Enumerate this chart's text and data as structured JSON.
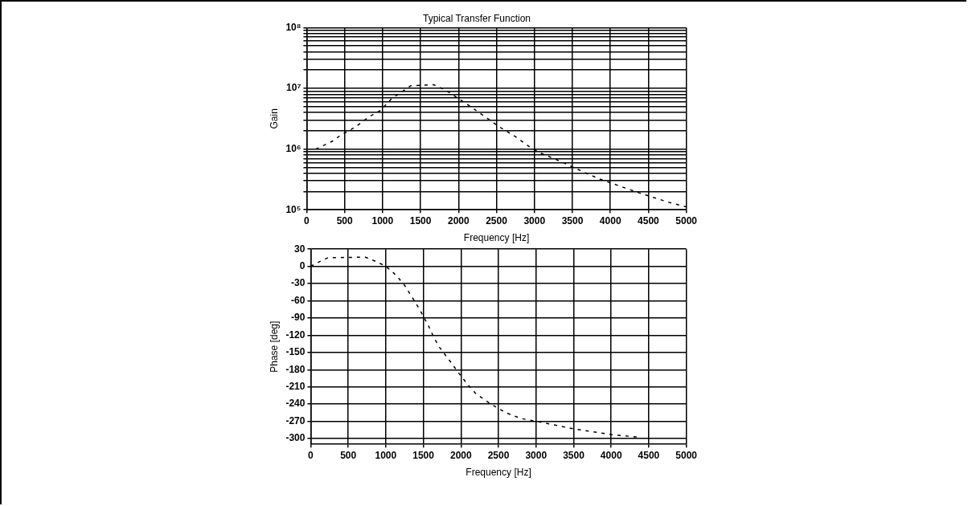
{
  "chart_data": [
    {
      "type": "line",
      "title": "Typical Transfer Function",
      "xlabel": "Frequency [Hz]",
      "ylabel": "Gain",
      "log": "y",
      "grid": true,
      "legend": false,
      "marker": "none",
      "line_style": "dashed",
      "xlim": [
        0,
        5000
      ],
      "xticks": [
        0,
        500,
        1000,
        1500,
        2000,
        2500,
        3000,
        3500,
        4000,
        4500,
        5000
      ],
      "ylim": [
        100000,
        100000000
      ],
      "yticks": [
        {
          "value": 100000,
          "label": "10⁵"
        },
        {
          "value": 200000,
          "label": null
        },
        {
          "value": 300000,
          "label": null
        },
        {
          "value": 400000,
          "label": null
        },
        {
          "value": 500000,
          "label": null
        },
        {
          "value": 600000,
          "label": null
        },
        {
          "value": 700000,
          "label": null
        },
        {
          "value": 800000,
          "label": null
        },
        {
          "value": 900000,
          "label": null
        },
        {
          "value": 1000000,
          "label": "10⁶"
        },
        {
          "value": 2000000,
          "label": null
        },
        {
          "value": 3000000,
          "label": null
        },
        {
          "value": 4000000,
          "label": null
        },
        {
          "value": 5000000,
          "label": null
        },
        {
          "value": 6000000,
          "label": null
        },
        {
          "value": 7000000,
          "label": null
        },
        {
          "value": 8000000,
          "label": null
        },
        {
          "value": 9000000,
          "label": null
        },
        {
          "value": 10000000,
          "label": "10⁷"
        },
        {
          "value": 20000000,
          "label": null
        },
        {
          "value": 30000000,
          "label": null
        },
        {
          "value": 40000000,
          "label": null
        },
        {
          "value": 50000000,
          "label": null
        },
        {
          "value": 60000000,
          "label": null
        },
        {
          "value": 70000000,
          "label": null
        },
        {
          "value": 80000000,
          "label": null
        },
        {
          "value": 90000000,
          "label": null
        },
        {
          "value": 100000000,
          "label": "10⁸"
        }
      ],
      "x": [
        120,
        340,
        450,
        640,
        820,
        970,
        1120,
        1370,
        1670,
        1820,
        2000,
        2190,
        2380,
        2520,
        2750,
        2930,
        3080,
        3340,
        3560,
        3860,
        4190,
        4380,
        4750,
        5000
      ],
      "series": [
        {
          "color": "#000000",
          "values": [
            1000000,
            1350000,
            1700000,
            2300000,
            3400000,
            4300000,
            6800000,
            11000000,
            11500000,
            9500000,
            6800000,
            4700000,
            3200000,
            2400000,
            1600000,
            1100000,
            860000,
            630000,
            470000,
            320000,
            230000,
            190000,
            135000,
            112000
          ]
        }
      ]
    },
    {
      "type": "line",
      "xlabel": "Frequency [Hz]",
      "ylabel": "Phase [deg]",
      "grid": true,
      "legend": false,
      "marker": "none",
      "line_style": "dashed",
      "xlim": [
        0,
        5000
      ],
      "xticks": [
        0,
        500,
        1000,
        1500,
        2000,
        2500,
        3000,
        3500,
        4000,
        4500,
        5000
      ],
      "ylim": [
        -310,
        30
      ],
      "yticks": [
        30,
        0,
        -30,
        -60,
        -90,
        -120,
        -150,
        -180,
        -210,
        -240,
        -270,
        -300
      ],
      "x": [
        0,
        100,
        230,
        730,
        880,
        1000,
        1085,
        1160,
        1250,
        1400,
        1475,
        1570,
        1640,
        1715,
        1865,
        1960,
        2090,
        2200,
        2400,
        2600,
        2800,
        3000,
        3200,
        3500,
        4000,
        4400
      ],
      "series": [
        {
          "color": "#000000",
          "values": [
            0,
            7,
            15,
            16,
            8,
            0,
            -9,
            -19,
            -33,
            -64,
            -81,
            -104,
            -124,
            -141,
            -167,
            -184,
            -206,
            -222,
            -240,
            -255,
            -265,
            -270,
            -275,
            -283,
            -293,
            -298
          ]
        }
      ]
    }
  ]
}
